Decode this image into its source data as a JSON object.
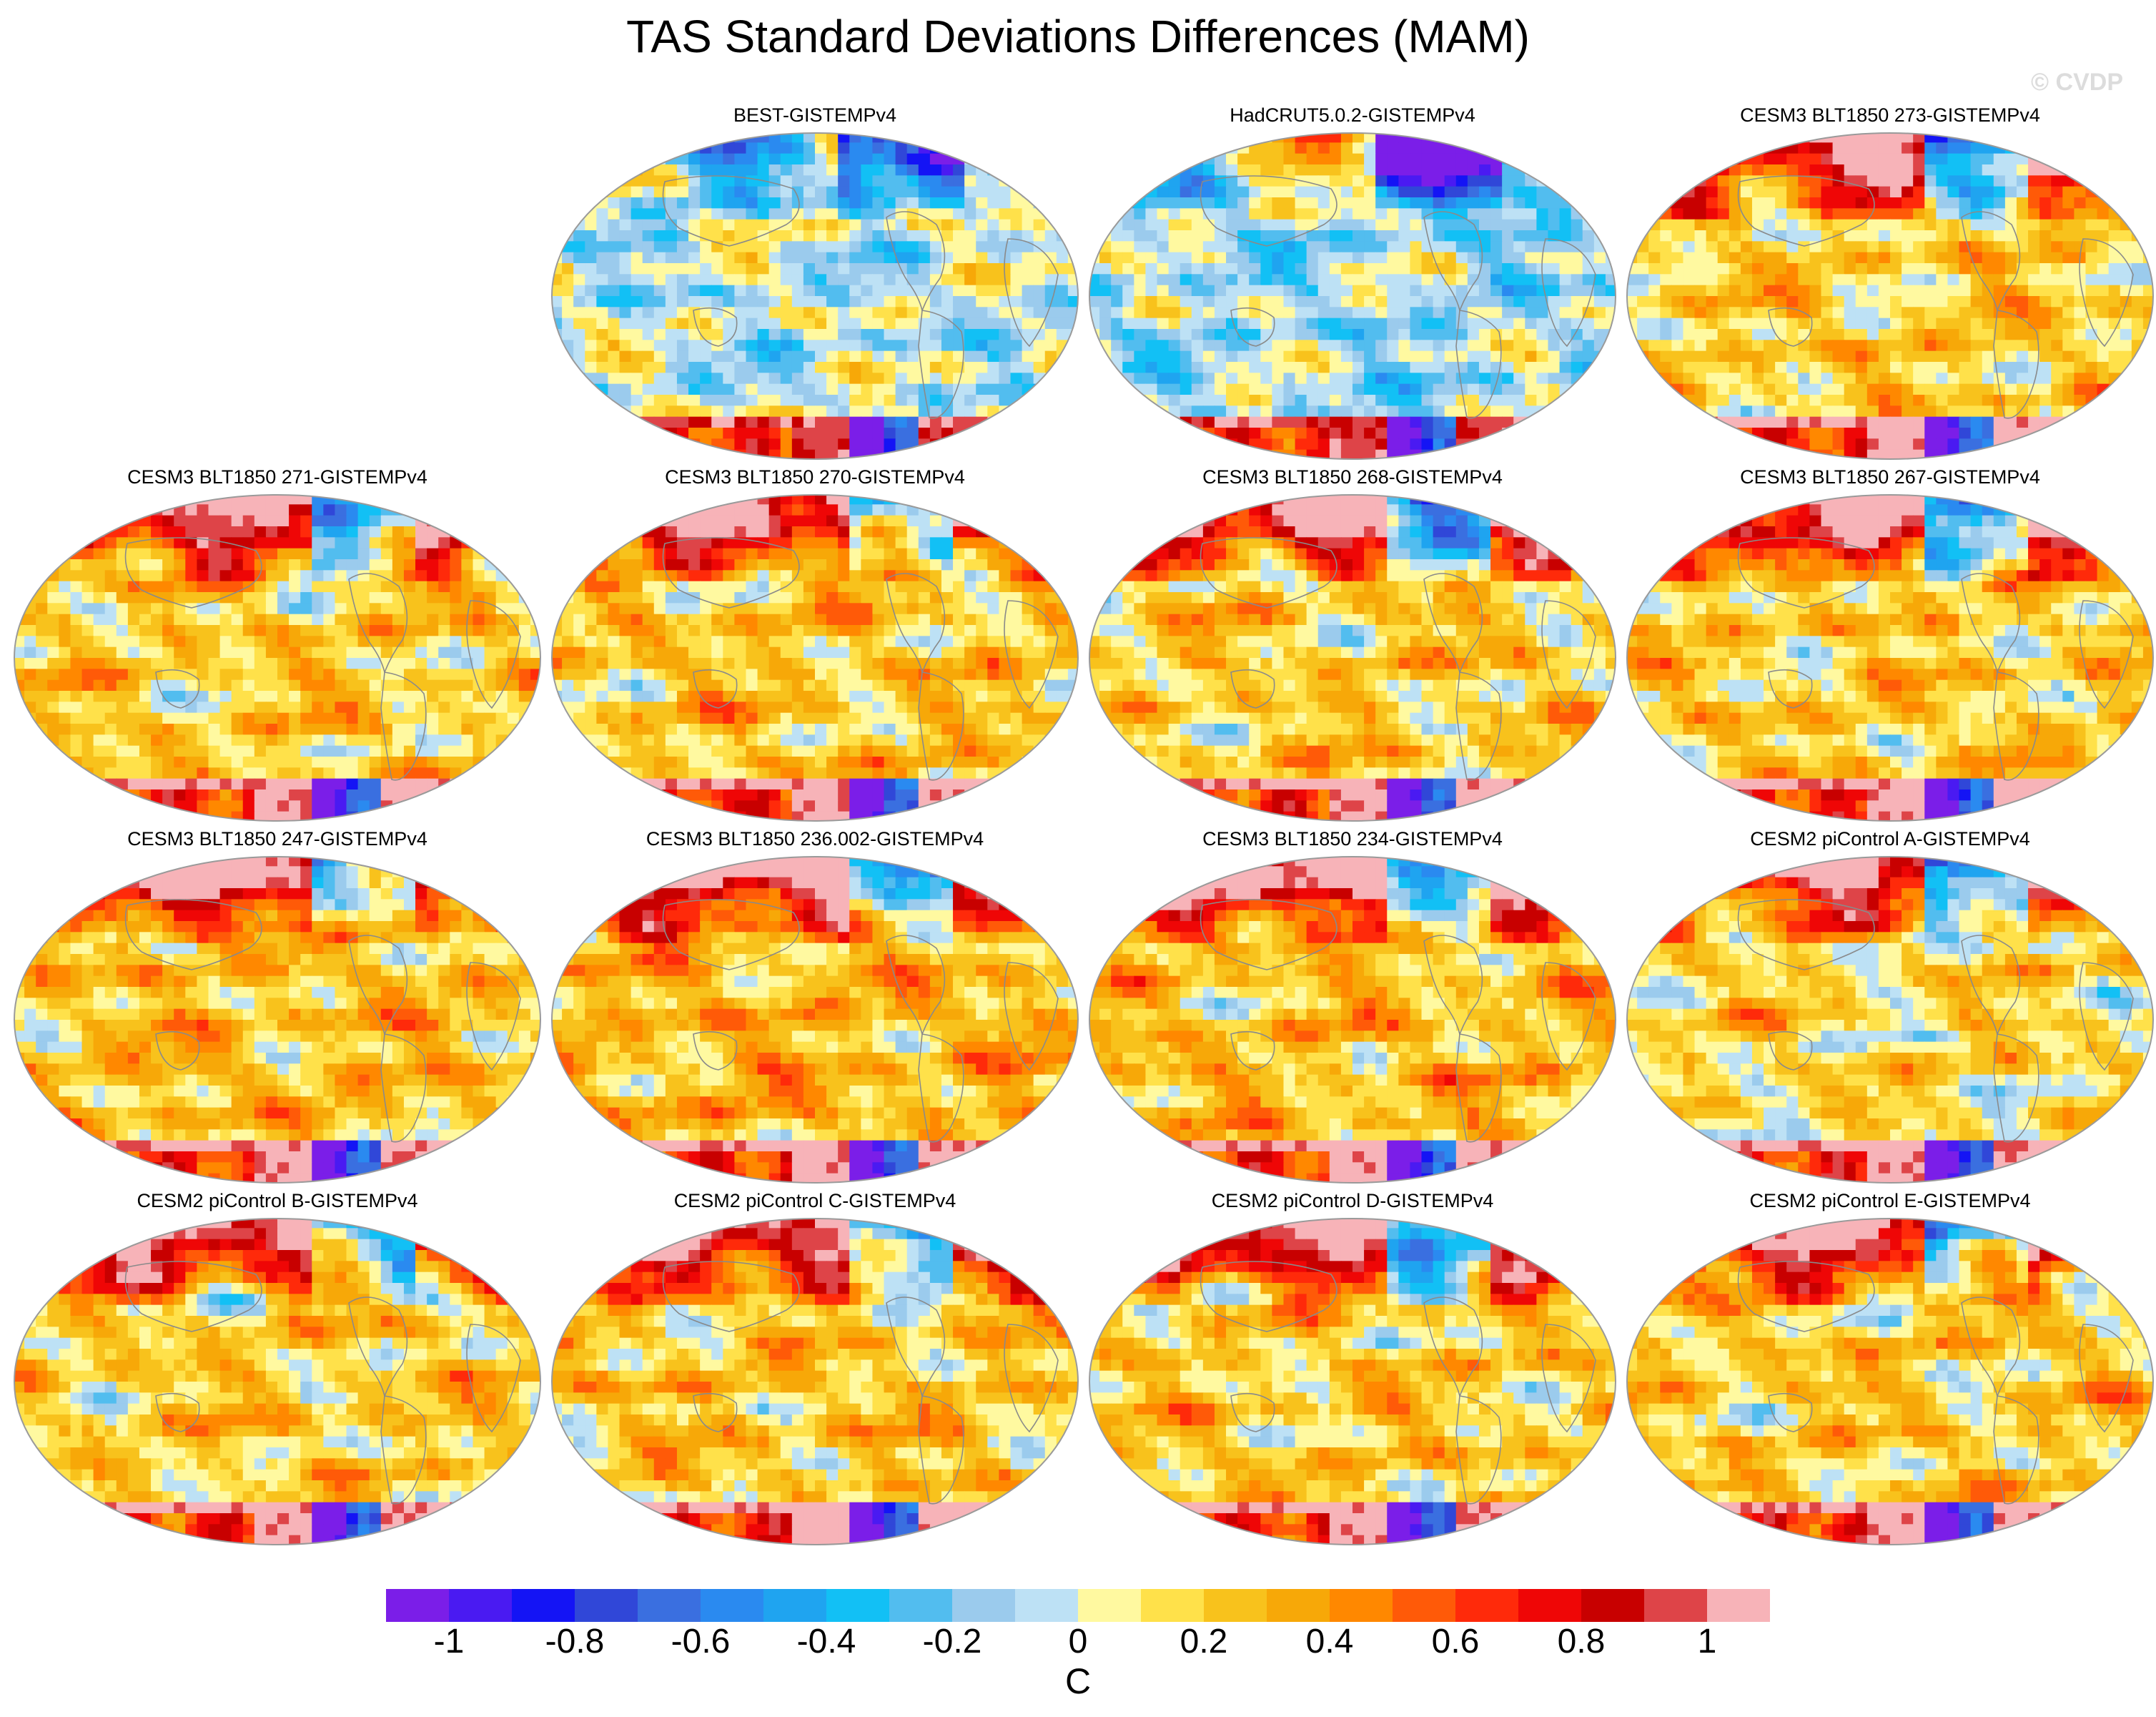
{
  "title": "TAS Standard Deviations Differences (MAM)",
  "watermark": "© CVDP",
  "colors": {
    "levels": [
      "#7b1ee8",
      "#4a1af2",
      "#1414f5",
      "#3047d8",
      "#3a6fe0",
      "#2a8af0",
      "#1fa4f0",
      "#12c0f5",
      "#52bdef",
      "#9bcbed",
      "#bde1f5",
      "#fff9a0",
      "#ffe14a",
      "#f8c21c",
      "#f7a808",
      "#ff8800",
      "#ff5a08",
      "#ff2a0a",
      "#ef0606",
      "#c80000",
      "#de4448",
      "#f7b3b8"
    ],
    "land_outline": "#8a8a8a",
    "frame": "#9a9a9a"
  },
  "chart_data": {
    "type": "heatmap",
    "variable": "TAS standard deviation difference",
    "season": "MAM",
    "projection": "Robinson-like global map",
    "colorbar": {
      "unit": "C",
      "tick_labels": [
        "-1",
        "-0.8",
        "-0.6",
        "-0.4",
        "-0.2",
        "0",
        "0.2",
        "0.4",
        "0.6",
        "0.8",
        "1"
      ],
      "tick_values": [
        -1,
        -0.8,
        -0.6,
        -0.4,
        -0.2,
        0,
        0.2,
        0.4,
        0.6,
        0.8,
        1
      ],
      "levels": [
        -1.1,
        -1,
        -0.9,
        -0.8,
        -0.7,
        -0.6,
        -0.5,
        -0.4,
        -0.3,
        -0.2,
        -0.1,
        0,
        0.1,
        0.2,
        0.3,
        0.4,
        0.5,
        0.6,
        0.7,
        0.8,
        0.9,
        1,
        1.1
      ]
    },
    "panels": [
      {
        "title": "BEST-GISTEMPv4",
        "style": "obs",
        "mean_bias": -0.05,
        "seed": 11
      },
      {
        "title": "HadCRUT5.0.2-GISTEMPv4",
        "style": "obs",
        "mean_bias": -0.1,
        "seed": 23
      },
      {
        "title": "CESM3 BLT1850 273-GISTEMPv4",
        "style": "model",
        "mean_bias": 0.2,
        "seed": 37
      },
      {
        "title": "CESM3 BLT1850 271-GISTEMPv4",
        "style": "model",
        "mean_bias": 0.2,
        "seed": 41
      },
      {
        "title": "CESM3 BLT1850 270-GISTEMPv4",
        "style": "model",
        "mean_bias": 0.22,
        "seed": 53
      },
      {
        "title": "CESM3 BLT1850 268-GISTEMPv4",
        "style": "model",
        "mean_bias": 0.2,
        "seed": 67
      },
      {
        "title": "CESM3 BLT1850 267-GISTEMPv4",
        "style": "model",
        "mean_bias": 0.2,
        "seed": 71
      },
      {
        "title": "CESM3 BLT1850 247-GISTEMPv4",
        "style": "model",
        "mean_bias": 0.25,
        "seed": 83
      },
      {
        "title": "CESM3 BLT1850 236.002-GISTEMPv4",
        "style": "model",
        "mean_bias": 0.28,
        "seed": 97
      },
      {
        "title": "CESM3 BLT1850 234-GISTEMPv4",
        "style": "model",
        "mean_bias": 0.25,
        "seed": 101
      },
      {
        "title": "CESM2 piControl A-GISTEMPv4",
        "style": "model",
        "mean_bias": 0.15,
        "seed": 113
      },
      {
        "title": "CESM2 piControl B-GISTEMPv4",
        "style": "model",
        "mean_bias": 0.2,
        "seed": 127
      },
      {
        "title": "CESM2 piControl C-GISTEMPv4",
        "style": "model",
        "mean_bias": 0.22,
        "seed": 131
      },
      {
        "title": "CESM2 piControl D-GISTEMPv4",
        "style": "model",
        "mean_bias": 0.2,
        "seed": 139
      },
      {
        "title": "CESM2 piControl E-GISTEMPv4",
        "style": "model",
        "mean_bias": 0.2,
        "seed": 149
      }
    ]
  }
}
